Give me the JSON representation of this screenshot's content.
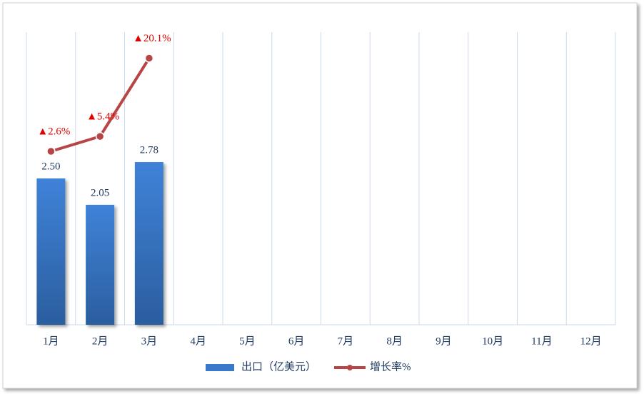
{
  "chart_data": {
    "type": "bar-line",
    "categories": [
      "1月",
      "2月",
      "3月",
      "4月",
      "5月",
      "6月",
      "7月",
      "8月",
      "9月",
      "10月",
      "11月",
      "12月"
    ],
    "series": [
      {
        "name": "出口（亿美元）",
        "type": "bar",
        "color": "#3a78c9",
        "values": [
          2.5,
          2.05,
          2.78,
          null,
          null,
          null,
          null,
          null,
          null,
          null,
          null,
          null
        ],
        "value_labels": [
          "2.50",
          "2.05",
          "2.78",
          null,
          null,
          null,
          null,
          null,
          null,
          null,
          null,
          null
        ]
      },
      {
        "name": "增长率%",
        "type": "line",
        "axis": "y2",
        "color": "#b84545",
        "label_color": "#e00000",
        "values": [
          2.6,
          5.4,
          20.1,
          null,
          null,
          null,
          null,
          null,
          null,
          null,
          null,
          null
        ],
        "value_labels": [
          "▲2.6%",
          "▲5.4%",
          "▲20.1%",
          null,
          null,
          null,
          null,
          null,
          null,
          null,
          null,
          null
        ]
      }
    ],
    "ylim": [
      0,
      5
    ],
    "y2lim": [
      -30,
      25
    ],
    "grid": true,
    "legend": "bottom"
  }
}
